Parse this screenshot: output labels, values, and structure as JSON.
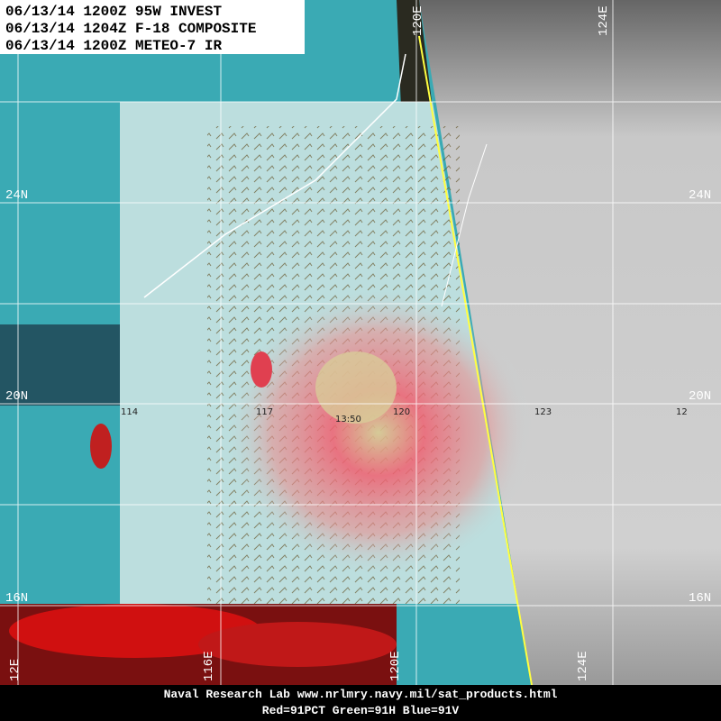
{
  "header": {
    "lines": [
      "06/13/14 1200Z 95W INVEST",
      "06/13/14 1204Z F-18 COMPOSITE",
      "06/13/14 1200Z METEO-7 IR"
    ]
  },
  "latitude_labels": {
    "left": [
      "24N",
      "20N",
      "16N"
    ],
    "right": [
      "24N",
      "20N",
      "16N"
    ]
  },
  "longitude_labels": {
    "top": [
      "120E",
      "124E"
    ],
    "bottom": [
      "12E",
      "116E",
      "120E",
      "124E"
    ]
  },
  "inner_labels": {
    "longitudes": [
      "114",
      "117",
      "120",
      "123",
      "12"
    ],
    "time": "13:50"
  },
  "footer": {
    "lines": [
      "Naval Research Lab  www.nrlmry.navy.mil/sat_products.html",
      "Red=91PCT   Green=91H   Blue=91V"
    ]
  }
}
